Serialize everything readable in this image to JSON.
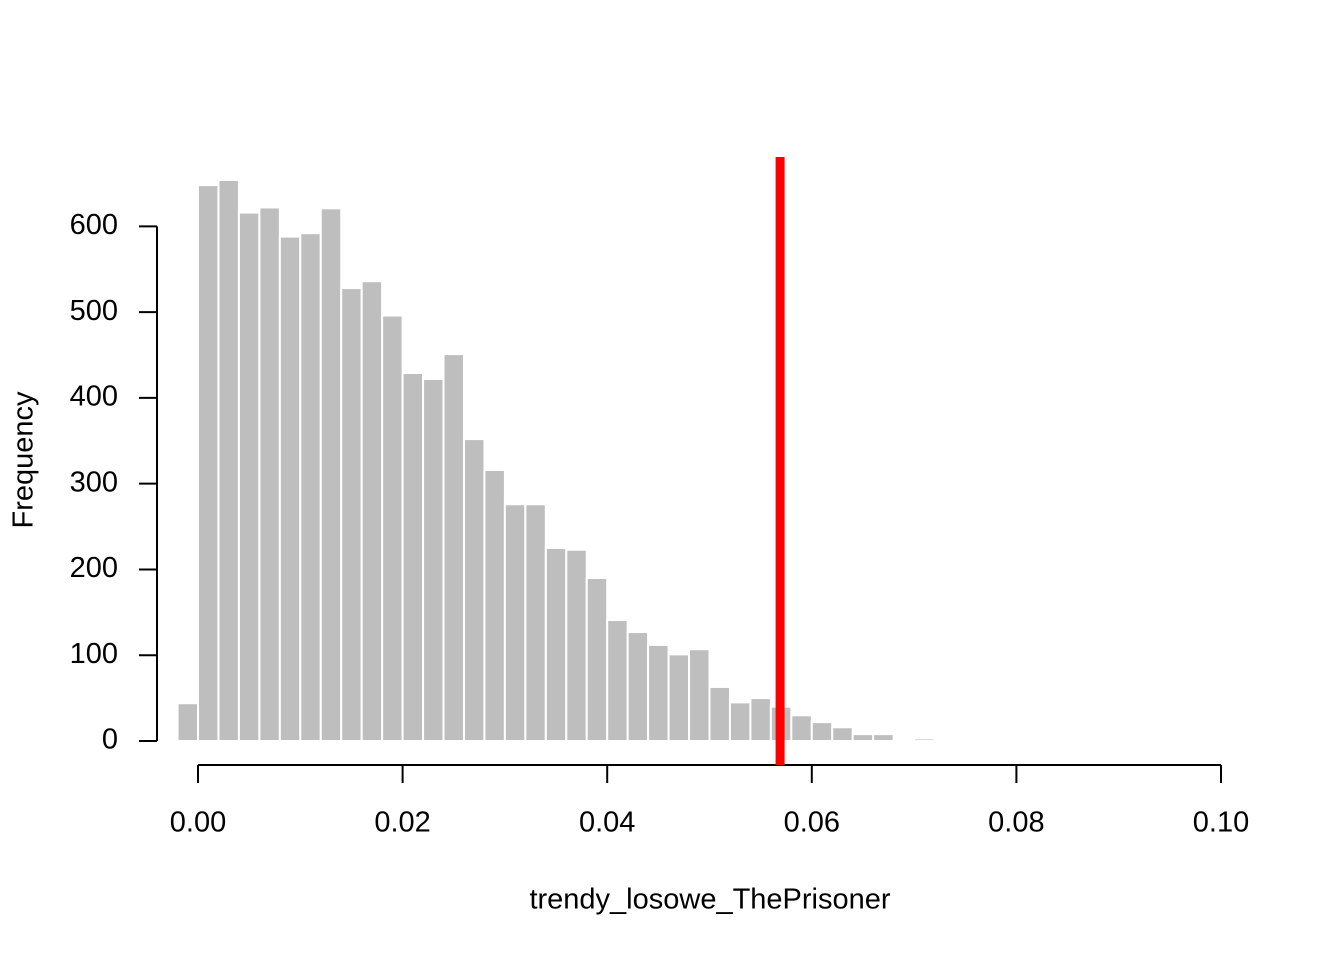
{
  "chart_data": {
    "type": "histogram",
    "x_label": "trendy_losowe_ThePrisoner",
    "y_label": "Frequency",
    "bins": [
      -0.002,
      0,
      0.002,
      0.004,
      0.006,
      0.008,
      0.01,
      0.012,
      0.014,
      0.016,
      0.018,
      0.02,
      0.022,
      0.024,
      0.026,
      0.028,
      0.03,
      0.032,
      0.034,
      0.036,
      0.038,
      0.04,
      0.042,
      0.044,
      0.046,
      0.048,
      0.05,
      0.052,
      0.054,
      0.056,
      0.058,
      0.06,
      0.062,
      0.064,
      0.066,
      0.068,
      0.07,
      0.072,
      0.074,
      0.076
    ],
    "values": [
      44,
      648,
      654,
      616,
      622,
      588,
      592,
      621,
      528,
      536,
      496,
      429,
      422,
      451,
      352,
      316,
      276,
      276,
      225,
      223,
      190,
      141,
      127,
      112,
      101,
      107,
      63,
      45,
      50,
      40,
      30,
      22,
      16,
      8,
      8,
      0,
      3,
      0,
      1
    ],
    "color": "#bebebe",
    "reference_line": 0.0569,
    "reference_color": "#ff0000",
    "xlim": [
      0,
      0.1
    ],
    "xticks": [
      {
        "value": 0,
        "label": "0.00"
      },
      {
        "value": 0.02,
        "label": "0.02"
      },
      {
        "value": 0.04,
        "label": "0.04"
      },
      {
        "value": 0.06,
        "label": "0.06"
      },
      {
        "value": 0.08,
        "label": "0.08"
      },
      {
        "value": 0.1,
        "label": "0.10"
      }
    ],
    "ylim": [
      0,
      654
    ],
    "yticks": [
      0,
      100,
      200,
      300,
      400,
      500,
      600
    ]
  }
}
